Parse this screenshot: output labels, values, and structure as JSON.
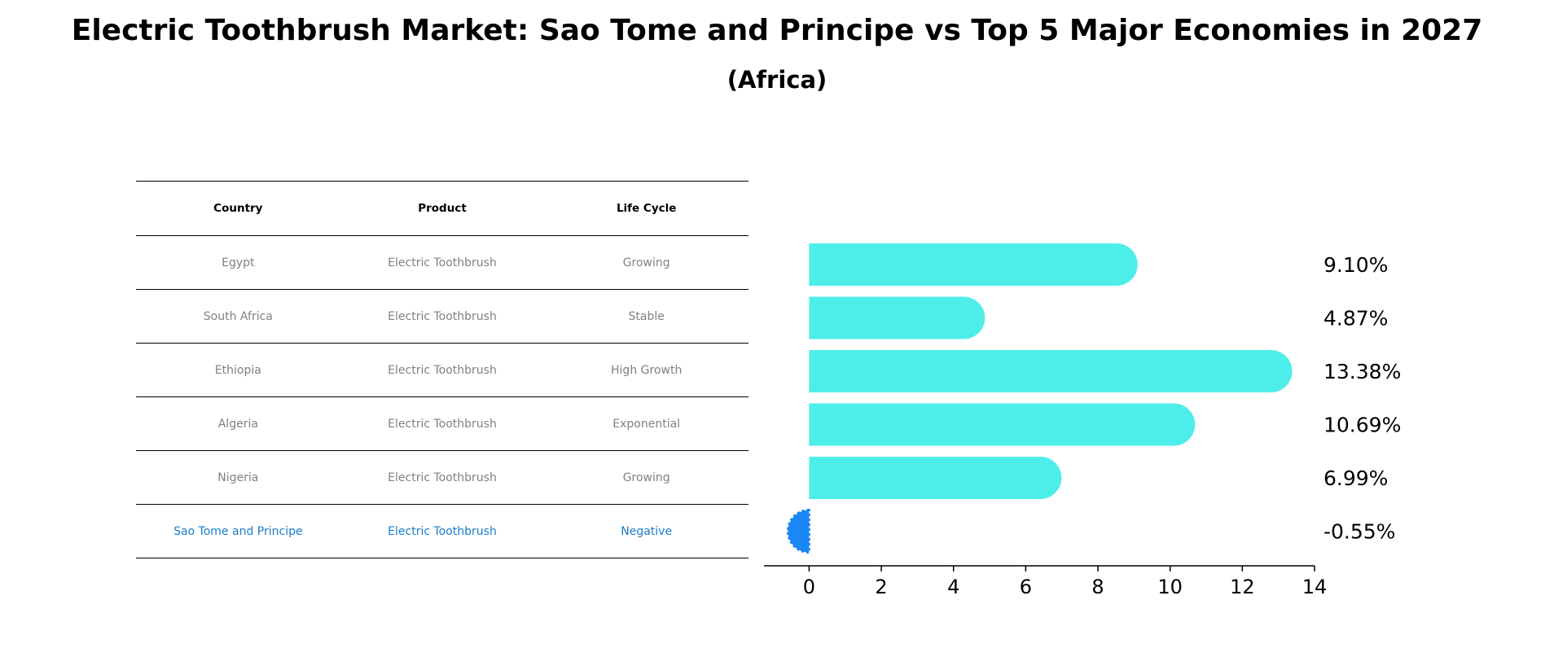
{
  "title": "Electric Toothbrush Market: Sao Tome and Principe vs Top 5 Major Economies in 2027",
  "subtitle": "(Africa)",
  "table": {
    "headers": [
      "Country",
      "Product",
      "Life Cycle"
    ],
    "rows": [
      {
        "country": "Egypt",
        "product": "Electric Toothbrush",
        "life_cycle": "Growing"
      },
      {
        "country": "South Africa",
        "product": "Electric Toothbrush",
        "life_cycle": "Stable"
      },
      {
        "country": "Ethiopia",
        "product": "Electric Toothbrush",
        "life_cycle": "High Growth"
      },
      {
        "country": "Algeria",
        "product": "Electric Toothbrush",
        "life_cycle": "Exponential"
      },
      {
        "country": "Nigeria",
        "product": "Electric Toothbrush",
        "life_cycle": "Growing"
      },
      {
        "country": "Sao Tome and Principe",
        "product": "Electric Toothbrush",
        "life_cycle": "Negative"
      }
    ]
  },
  "chart_data": {
    "type": "bar",
    "orientation": "horizontal",
    "categories": [
      "Egypt",
      "South Africa",
      "Ethiopia",
      "Algeria",
      "Nigeria",
      "Sao Tome and Principe"
    ],
    "values": [
      9.1,
      4.87,
      13.38,
      10.69,
      6.99,
      -0.55
    ],
    "value_labels": [
      "9.10%",
      "4.87%",
      "13.38%",
      "10.69%",
      "6.99%",
      "-0.55%"
    ],
    "xlim": [
      -1.25,
      14
    ],
    "xticks": [
      0,
      2,
      4,
      6,
      8,
      10,
      12,
      14
    ],
    "xlabel": "",
    "ylabel": "",
    "grid": false,
    "colors": {
      "others": "#4deeea",
      "highlight": "#1a87f5"
    },
    "highlight_index": 5
  },
  "colors": {
    "highlight_text": "#1a7ec8",
    "muted_text": "#808080"
  }
}
